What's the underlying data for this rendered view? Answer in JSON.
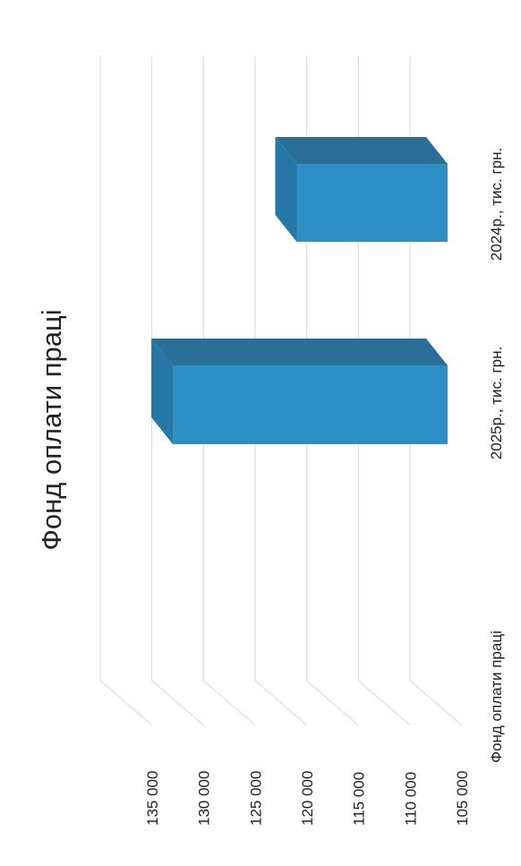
{
  "chart_data": {
    "type": "bar",
    "orientation": "vertical-3d",
    "title": "Фонд оплати праці",
    "categories": [
      "Фонд оплати праці"
    ],
    "series": [
      {
        "name": "2025р., тис. грн.",
        "values": [
          133000
        ]
      },
      {
        "name": "2024р., тис. грн.",
        "values": [
          121000
        ]
      }
    ],
    "y_ticks": [
      "135 000",
      "130 000",
      "125 000",
      "120 000",
      "115 000",
      "110 000",
      "105 000"
    ],
    "ylim": [
      105000,
      135000
    ],
    "grid": true,
    "bar_color": "#2e8fc5",
    "bar_top_color": "#2a6f98",
    "bar_side_color": "#2577a8"
  }
}
